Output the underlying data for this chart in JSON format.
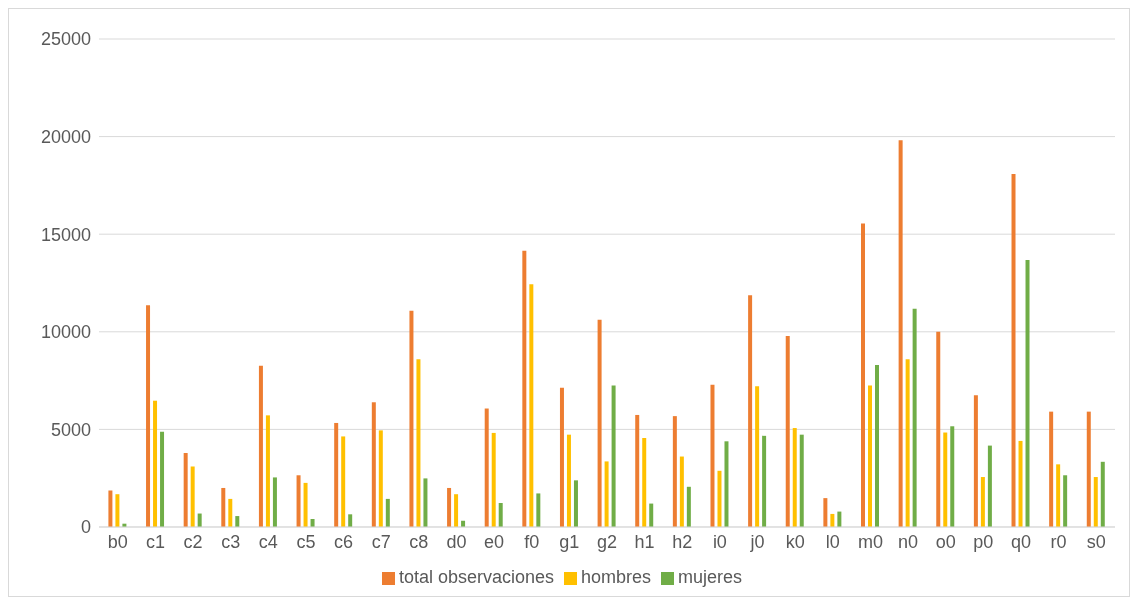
{
  "chart_data": {
    "type": "bar",
    "categories": [
      "b0",
      "c1",
      "c2",
      "c3",
      "c4",
      "c5",
      "c6",
      "c7",
      "c8",
      "d0",
      "e0",
      "f0",
      "g1",
      "g2",
      "h1",
      "h2",
      "i0",
      "j0",
      "k0",
      "l0",
      "m0",
      "n0",
      "o0",
      "p0",
      "q0",
      "r0",
      "s0"
    ],
    "series": [
      {
        "name": "total observaciones",
        "color": "#ed7d31",
        "values": [
          1870,
          11360,
          3790,
          2000,
          8260,
          2650,
          5330,
          6390,
          11080,
          2000,
          6070,
          14150,
          7140,
          10620,
          5740,
          5680,
          7290,
          11870,
          9790,
          1480,
          15550,
          19810,
          10000,
          6750,
          18090,
          5910,
          5910
        ]
      },
      {
        "name": "hombres",
        "color": "#ffc000",
        "values": [
          1680,
          6470,
          3100,
          1440,
          5720,
          2260,
          4640,
          4950,
          8600,
          1680,
          4820,
          12430,
          4730,
          3360,
          4560,
          3610,
          2880,
          7210,
          5070,
          670,
          7250,
          8600,
          4840,
          2560,
          4410,
          3210,
          2560
        ]
      },
      {
        "name": "mujeres",
        "color": "#70ad47",
        "values": [
          170,
          4880,
          690,
          560,
          2540,
          410,
          650,
          1440,
          2490,
          320,
          1230,
          1720,
          2390,
          7250,
          1200,
          2060,
          4390,
          4670,
          4730,
          790,
          8300,
          11180,
          5160,
          4170,
          13680,
          2650,
          3340
        ]
      }
    ],
    "ylim": [
      0,
      25000
    ],
    "yticks": [
      0,
      5000,
      10000,
      15000,
      20000,
      25000
    ],
    "grid": "y",
    "legend": "bottom"
  }
}
